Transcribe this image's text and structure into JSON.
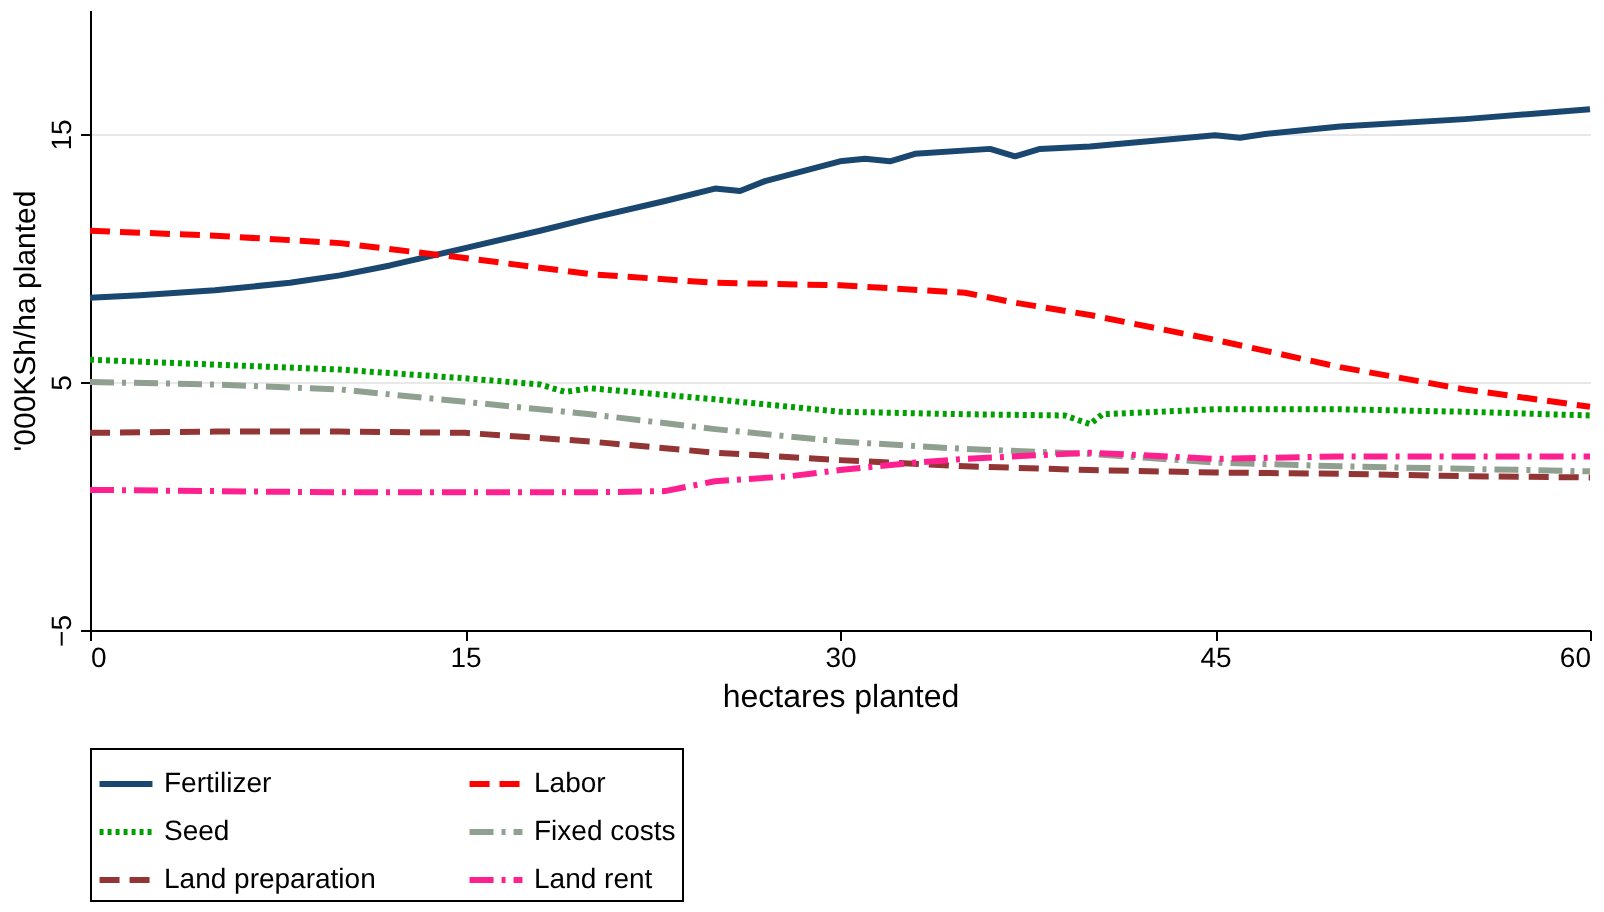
{
  "chart_data": {
    "type": "line",
    "xlabel": "hectares planted",
    "ylabel": "'000KSh/ha planted",
    "xlim": [
      0,
      60
    ],
    "xticks": [
      0,
      15,
      30,
      45,
      60
    ],
    "ylim": [
      -5,
      20
    ],
    "yticks": [
      -5,
      5,
      15
    ],
    "grid": "y",
    "legend": "bottom",
    "series": [
      {
        "name": "Fertilizer",
        "color": "#1a476f",
        "line_style": "solid",
        "x": [
          0,
          2,
          5,
          8,
          10,
          12,
          15,
          18,
          20,
          23,
          25,
          26,
          27,
          30,
          31,
          32,
          33,
          36,
          37,
          38,
          40,
          45,
          46,
          47,
          50,
          55,
          60
        ],
        "values": [
          8.4,
          8.5,
          8.7,
          9.0,
          9.3,
          9.7,
          10.4,
          11.1,
          11.6,
          12.3,
          12.8,
          12.7,
          13.1,
          13.9,
          14.0,
          13.9,
          14.2,
          14.4,
          14.1,
          14.4,
          14.5,
          14.95,
          14.85,
          15.0,
          15.3,
          15.6,
          16.0
        ]
      },
      {
        "name": "Labor",
        "color": "#ff0000",
        "line_style": "dashed",
        "x": [
          0,
          5,
          10,
          15,
          20,
          25,
          30,
          35,
          37,
          40,
          45,
          50,
          55,
          60
        ],
        "values": [
          11.1,
          10.9,
          10.6,
          10.0,
          9.35,
          9.0,
          8.9,
          8.6,
          8.2,
          7.7,
          6.7,
          5.6,
          4.7,
          4.0
        ]
      },
      {
        "name": "Seed",
        "color": "#00a000",
        "line_style": "dotted",
        "x": [
          0,
          5,
          10,
          15,
          18,
          19,
          20,
          25,
          30,
          35,
          39,
          40,
          40.5,
          45,
          50,
          55,
          60
        ],
        "values": [
          5.9,
          5.7,
          5.5,
          5.15,
          4.9,
          4.6,
          4.75,
          4.3,
          3.8,
          3.7,
          3.65,
          3.3,
          3.7,
          3.9,
          3.9,
          3.8,
          3.65
        ]
      },
      {
        "name": "Fixed costs",
        "color": "#90a090",
        "line_style": "dashdot",
        "x": [
          0,
          5,
          10,
          15,
          20,
          25,
          30,
          35,
          40,
          45,
          50,
          55,
          60
        ],
        "values": [
          5.0,
          4.9,
          4.7,
          4.2,
          3.7,
          3.1,
          2.6,
          2.3,
          2.1,
          1.75,
          1.6,
          1.5,
          1.4
        ]
      },
      {
        "name": "Land preparation",
        "color": "#943535",
        "line_style": "dashed",
        "x": [
          0,
          5,
          10,
          15,
          20,
          25,
          30,
          35,
          40,
          45,
          50,
          55,
          60
        ],
        "values": [
          2.95,
          3.0,
          3.0,
          2.95,
          2.6,
          2.15,
          1.85,
          1.6,
          1.45,
          1.35,
          1.3,
          1.2,
          1.15
        ]
      },
      {
        "name": "Land rent",
        "color": "#ff2090",
        "line_style": "dashdot",
        "x": [
          0,
          5,
          10,
          15,
          20,
          23,
          25,
          28,
          30,
          33,
          35,
          40,
          45,
          50,
          55,
          60
        ],
        "values": [
          0.65,
          0.6,
          0.55,
          0.55,
          0.55,
          0.6,
          1.0,
          1.2,
          1.45,
          1.75,
          1.9,
          2.15,
          1.9,
          2.0,
          2.0,
          2.0
        ]
      }
    ]
  }
}
